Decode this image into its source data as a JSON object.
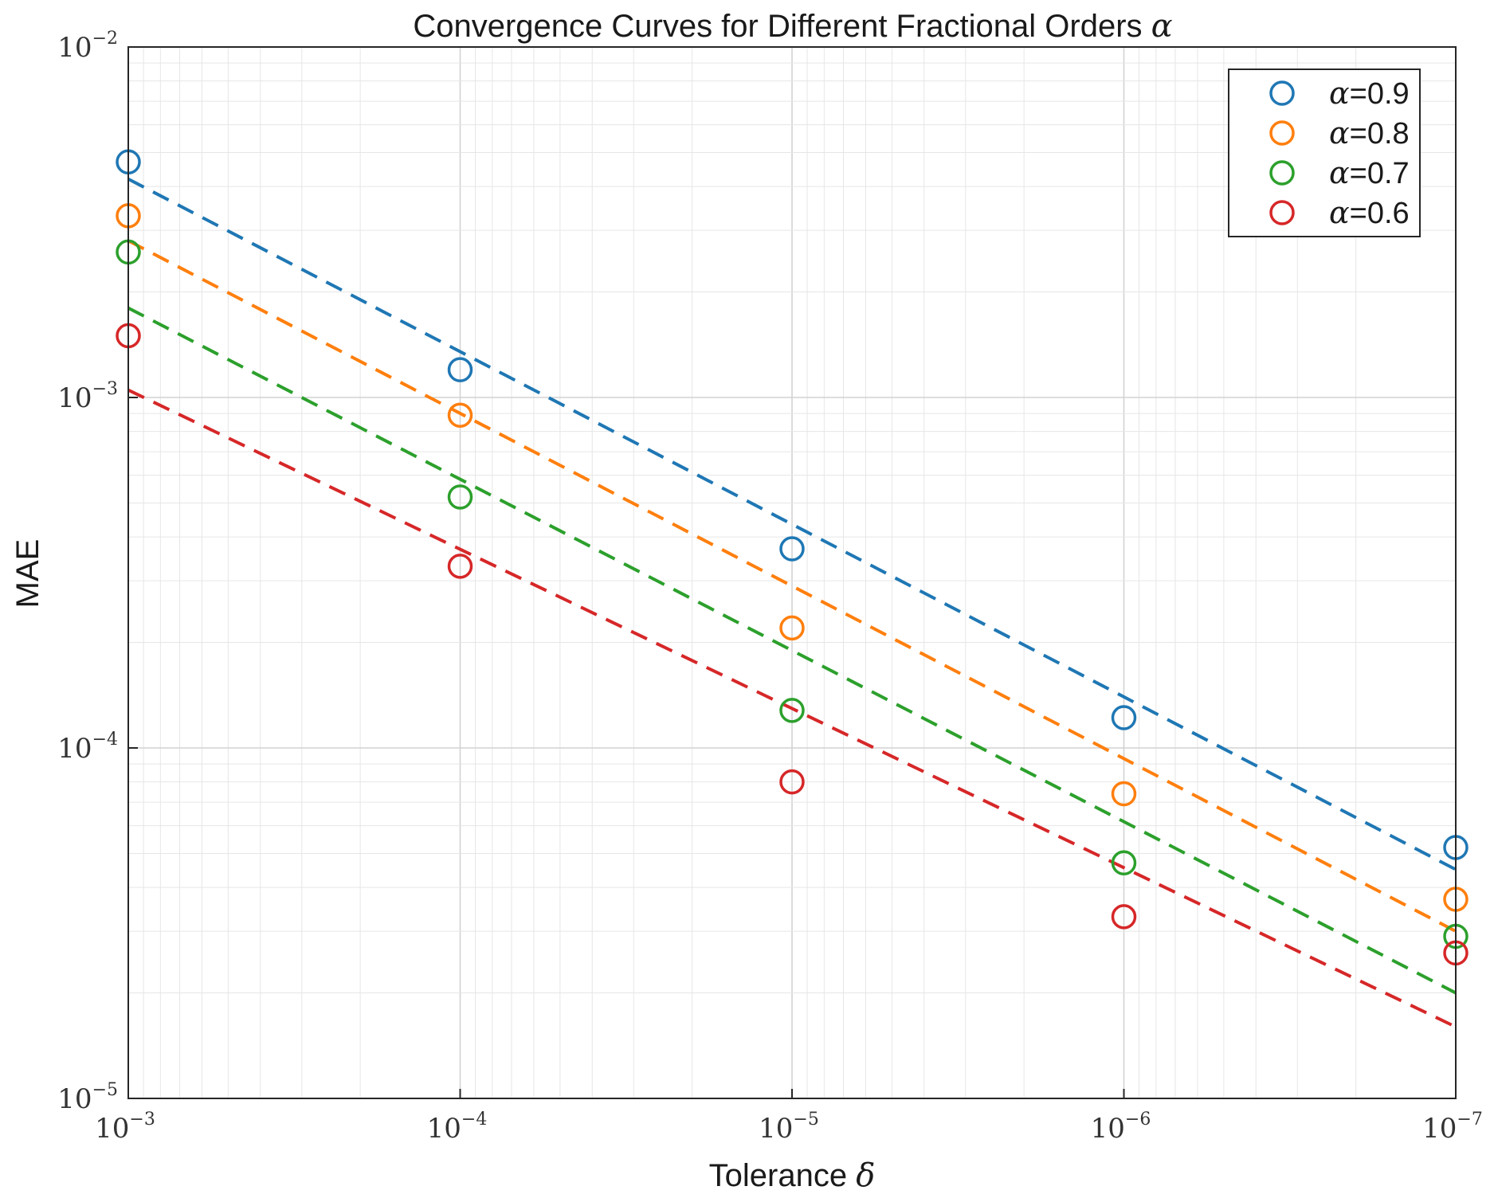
{
  "chart_data": {
    "type": "scatter",
    "title_prefix": "Convergence Curves for Different Fractional Orders ",
    "title_symbol": "α",
    "xlabel_prefix": "Tolerance ",
    "xlabel_symbol": "δ",
    "ylabel": "MAE",
    "x_scale": "log",
    "y_scale": "log",
    "x_reversed": true,
    "xlim": [
      0.001,
      1e-07
    ],
    "ylim": [
      1e-05,
      0.01
    ],
    "x_ticks": [
      {
        "value": 0.001,
        "base": "10",
        "exp": "−3"
      },
      {
        "value": 0.0001,
        "base": "10",
        "exp": "−4"
      },
      {
        "value": 1e-05,
        "base": "10",
        "exp": "−5"
      },
      {
        "value": 1e-06,
        "base": "10",
        "exp": "−6"
      },
      {
        "value": 1e-07,
        "base": "10",
        "exp": "−7"
      }
    ],
    "y_ticks": [
      {
        "value": 0.01,
        "base": "10",
        "exp": "−2"
      },
      {
        "value": 0.001,
        "base": "10",
        "exp": "−3"
      },
      {
        "value": 0.0001,
        "base": "10",
        "exp": "−4"
      },
      {
        "value": 1e-05,
        "base": "10",
        "exp": "−5"
      }
    ],
    "grid": true,
    "legend_position": "top-right",
    "x": [
      0.001,
      0.0001,
      1e-05,
      1e-06,
      1e-07
    ],
    "series": [
      {
        "name_symbol": "α",
        "name_suffix": "=0.9",
        "color": "#1f77b4",
        "values": [
          0.0047,
          0.0012,
          0.00037,
          0.000122,
          5.2e-05
        ],
        "fit": [
          [
            0.001,
            0.0042
          ],
          [
            1e-07,
            4.5e-05
          ]
        ]
      },
      {
        "name_symbol": "α",
        "name_suffix": "=0.8",
        "color": "#ff7f0e",
        "values": [
          0.0033,
          0.00089,
          0.00022,
          7.4e-05,
          3.7e-05
        ],
        "fit": [
          [
            0.001,
            0.0028
          ],
          [
            1e-07,
            3e-05
          ]
        ]
      },
      {
        "name_symbol": "α",
        "name_suffix": "=0.7",
        "color": "#2ca02c",
        "values": [
          0.0026,
          0.00052,
          0.000128,
          4.7e-05,
          2.9e-05
        ],
        "fit": [
          [
            0.001,
            0.0018
          ],
          [
            1e-07,
            2e-05
          ]
        ]
      },
      {
        "name_symbol": "α",
        "name_suffix": "=0.6",
        "color": "#d62728",
        "values": [
          0.0015,
          0.00033,
          8e-05,
          3.3e-05,
          2.6e-05
        ],
        "fit": [
          [
            0.001,
            0.00105
          ],
          [
            1e-07,
            1.6e-05
          ]
        ]
      }
    ]
  }
}
